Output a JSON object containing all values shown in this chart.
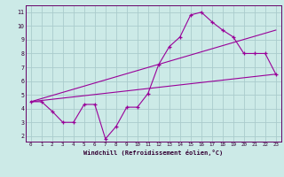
{
  "xlabel": "Windchill (Refroidissement éolien,°C)",
  "background_color": "#cceae7",
  "grid_color": "#aacccc",
  "line_color": "#990099",
  "spine_color": "#660066",
  "xlim": [
    -0.5,
    23.5
  ],
  "ylim": [
    1.6,
    11.5
  ],
  "xticks": [
    0,
    1,
    2,
    3,
    4,
    5,
    6,
    7,
    8,
    9,
    10,
    11,
    12,
    13,
    14,
    15,
    16,
    17,
    18,
    19,
    20,
    21,
    22,
    23
  ],
  "yticks": [
    2,
    3,
    4,
    5,
    6,
    7,
    8,
    9,
    10,
    11
  ],
  "curve1_x": [
    0,
    1,
    2,
    3,
    4,
    5,
    6,
    7,
    8,
    9,
    10,
    11,
    12,
    13,
    14,
    15,
    16,
    17,
    18,
    19,
    20,
    21,
    22,
    23
  ],
  "curve1_y": [
    4.5,
    4.5,
    3.8,
    3.0,
    3.0,
    4.3,
    4.3,
    1.8,
    2.7,
    4.1,
    4.1,
    5.1,
    7.2,
    8.5,
    9.2,
    10.8,
    11.0,
    10.3,
    9.7,
    9.2,
    8.0,
    8.0,
    8.0,
    6.5
  ],
  "line1_x": [
    0,
    23
  ],
  "line1_y": [
    4.5,
    6.5
  ],
  "line2_x": [
    0,
    23
  ],
  "line2_y": [
    4.5,
    9.7
  ]
}
